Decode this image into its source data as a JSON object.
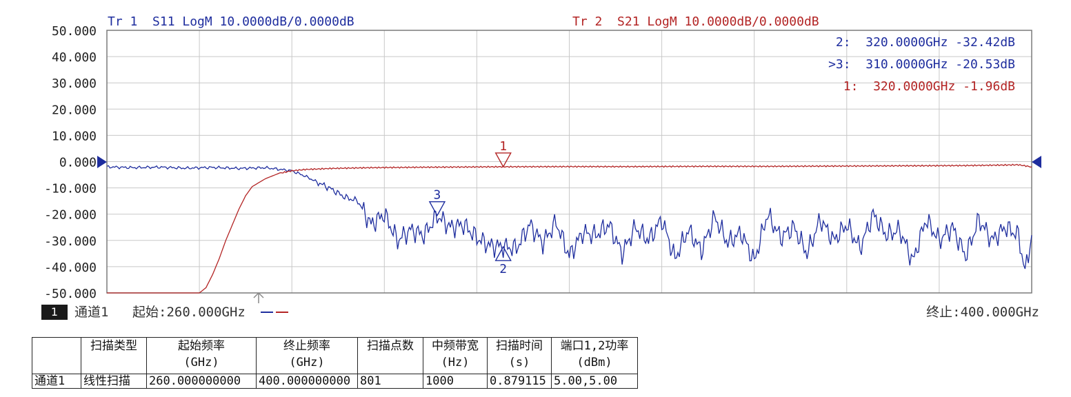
{
  "traces": [
    {
      "header": "Tr 1  S11 LogM 10.0000dB/0.0000dB",
      "color": "#1e2d9e"
    },
    {
      "header": "Tr 2  S21 LogM 10.0000dB/0.0000dB",
      "color": "#b32424"
    }
  ],
  "marker_readouts": [
    {
      "text": "2:  320.0000GHz -32.42dB",
      "color": "#1e2d9e"
    },
    {
      "text": ">3:  310.0000GHz -20.53dB",
      "color": "#1e2d9e"
    },
    {
      "text": "1:  320.0000GHz -1.96dB",
      "color": "#b32424"
    }
  ],
  "footer": {
    "channel_badge": "1",
    "channel": "通道1",
    "start": "起始:260.000GHz",
    "stop": "终止:400.000GHz"
  },
  "params_table": {
    "headers": [
      "",
      "扫描类型",
      "起始频率\n(GHz)",
      "终止频率\n(GHz)",
      "扫描点数",
      "中频带宽\n(Hz)",
      "扫描时间\n(s)",
      "端口1,2功率\n(dBm)"
    ],
    "rows": [
      [
        "通道1",
        "线性扫描",
        "260.000000000",
        "400.000000000",
        "801",
        "1000",
        "0.879115",
        "5.00,5.00"
      ]
    ]
  },
  "chart_data": {
    "type": "line",
    "xlim": [
      260,
      400
    ],
    "ylim": [
      -50,
      50
    ],
    "ytick_labels": [
      "50.000",
      "40.000",
      "30.000",
      "20.000",
      "10.000",
      "0.000",
      "-10.000",
      "-20.000",
      "-30.000",
      "-40.000",
      "-50.000"
    ],
    "x_gridlines": 10,
    "y_gridlines": 10,
    "grid": true,
    "series": [
      {
        "name": "S11",
        "color": "#1e2d9e",
        "x": [
          260,
          264,
          268,
          272,
          276,
          280,
          284,
          288,
          290,
          292,
          294,
          296,
          298,
          300,
          302,
          304,
          306,
          308,
          310,
          312,
          314,
          316,
          318,
          320,
          322,
          324,
          326,
          328,
          330,
          332,
          334,
          336,
          338,
          340,
          342,
          344,
          346,
          348,
          350,
          352,
          354,
          356,
          358,
          360,
          362,
          364,
          366,
          368,
          370,
          372,
          374,
          376,
          378,
          380,
          382,
          384,
          386,
          388,
          390,
          392,
          394,
          396,
          398,
          399,
          400
        ],
        "y": [
          -2.0,
          -2.3,
          -2.1,
          -2.5,
          -2.2,
          -2.6,
          -2.3,
          -3.5,
          -5.5,
          -8.0,
          -10.5,
          -13.5,
          -15.0,
          -24.0,
          -20.0,
          -30.0,
          -26.0,
          -28.0,
          -20.5,
          -25.0,
          -24.0,
          -29.0,
          -32.0,
          -32.4,
          -33.0,
          -24.0,
          -31.0,
          -23.0,
          -36.0,
          -27.0,
          -28.0,
          -24.0,
          -35.0,
          -25.0,
          -30.0,
          -22.0,
          -37.0,
          -26.0,
          -34.0,
          -21.0,
          -31.0,
          -27.0,
          -38.0,
          -20.0,
          -29.0,
          -25.0,
          -35.0,
          -22.0,
          -30.0,
          -24.0,
          -33.0,
          -20.0,
          -28.0,
          -26.0,
          -38.0,
          -22.0,
          -30.0,
          -25.0,
          -36.0,
          -22.0,
          -30.0,
          -25.0,
          -28.0,
          -42.0,
          -28.0
        ]
      },
      {
        "name": "S21",
        "color": "#b32424",
        "x": [
          260,
          270,
          274,
          275,
          276,
          277,
          278,
          279,
          280,
          281,
          282,
          284,
          286,
          288,
          290,
          294,
          300,
          310,
          320,
          330,
          340,
          350,
          360,
          370,
          380,
          390,
          396,
          398,
          400
        ],
        "y": [
          -50,
          -50,
          -50,
          -48,
          -43,
          -37,
          -30,
          -24,
          -18,
          -13,
          -9.5,
          -6.5,
          -4.5,
          -3.5,
          -3.0,
          -2.6,
          -2.3,
          -2.1,
          -1.96,
          -1.9,
          -1.9,
          -1.8,
          -1.8,
          -1.7,
          -1.6,
          -1.5,
          -1.3,
          -1.2,
          -2.0
        ]
      }
    ],
    "markers": [
      {
        "label": "1",
        "trace": "S21",
        "x": 320,
        "y": -1.96,
        "color": "#b32424",
        "pointer": "down"
      },
      {
        "label": "3",
        "trace": "S11",
        "x": 310,
        "y": -20.53,
        "color": "#1e2d9e",
        "pointer": "down"
      },
      {
        "label": "2",
        "trace": "S11",
        "x": 320,
        "y": -32.42,
        "color": "#1e2d9e",
        "pointer": "up"
      }
    ],
    "reference_level": 0
  }
}
